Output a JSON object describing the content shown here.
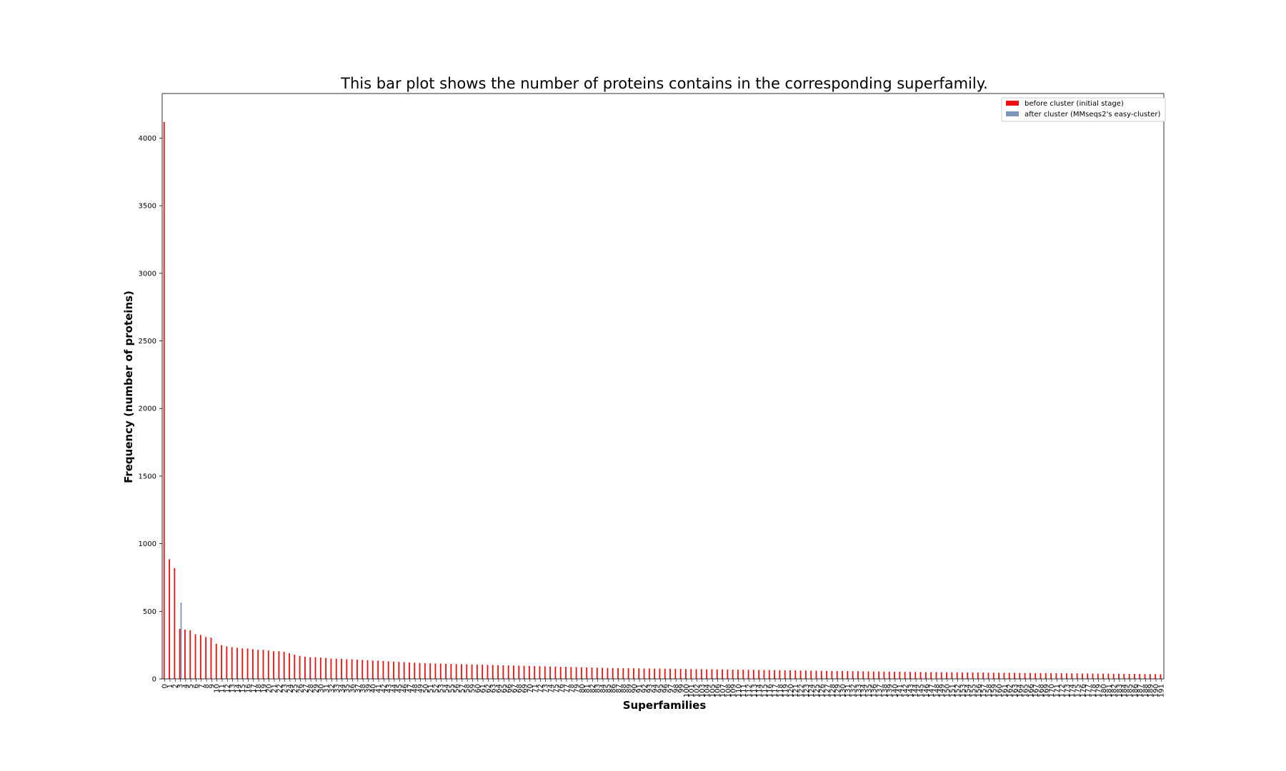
{
  "chart_data": {
    "type": "bar",
    "title": "This bar plot shows the number of proteins contains in the corresponding superfamily.",
    "xlabel": "Superfamilies",
    "ylabel": "Frequency (number of proteins)",
    "ylim": [
      0,
      4330
    ],
    "yticks": [
      0,
      500,
      1000,
      1500,
      2000,
      2500,
      3000,
      3500,
      4000
    ],
    "grid": false,
    "legend_position": "top-right",
    "categories_start": 0,
    "categories_end": 191,
    "category_labels_visible": [
      0,
      1,
      2,
      3,
      4,
      5,
      6,
      7,
      8,
      9,
      10,
      11,
      12,
      13,
      14,
      15,
      16,
      17,
      18,
      19,
      20,
      21,
      22,
      23,
      24,
      25,
      26,
      27,
      28,
      29,
      30,
      31,
      32,
      33,
      34,
      35,
      36,
      37,
      38,
      39,
      40,
      41,
      42,
      43,
      44,
      45,
      46,
      47,
      48,
      49,
      50,
      51,
      52,
      53,
      54,
      55,
      56,
      57,
      58,
      59,
      60,
      61,
      62,
      63,
      64,
      65,
      66,
      67,
      68,
      69,
      70,
      71,
      72,
      73,
      74,
      75,
      76,
      77,
      78,
      79,
      80,
      81,
      82,
      83,
      84,
      85,
      86,
      87,
      88,
      89,
      90,
      91,
      92,
      93,
      94,
      95,
      96,
      97,
      98,
      99,
      100,
      101,
      102,
      103,
      104,
      105,
      106,
      107,
      108,
      109,
      110,
      111,
      112,
      113,
      114,
      115,
      116,
      117,
      118,
      119,
      120,
      121,
      122,
      123,
      124,
      125,
      126,
      127,
      128,
      129,
      130,
      131,
      132,
      133,
      134,
      135,
      136,
      137,
      138,
      139,
      140,
      141,
      142,
      143,
      144,
      145,
      146,
      147,
      148,
      149,
      150,
      151,
      152,
      153,
      154,
      155,
      156,
      157,
      158,
      159,
      160,
      161,
      162,
      163,
      164,
      165,
      166,
      167,
      168,
      169,
      170,
      171,
      172,
      173,
      174,
      175,
      176,
      177,
      178,
      179,
      180,
      181,
      182,
      183,
      184,
      185,
      186,
      187,
      188,
      189,
      190,
      191
    ],
    "series": [
      {
        "name": "before cluster (initial stage)",
        "color": "#ee1111",
        "values": [
          4120,
          885,
          820,
          370,
          365,
          360,
          330,
          325,
          310,
          305,
          260,
          250,
          240,
          235,
          230,
          225,
          225,
          220,
          215,
          215,
          210,
          205,
          205,
          200,
          190,
          180,
          170,
          165,
          160,
          160,
          158,
          155,
          150,
          150,
          148,
          146,
          145,
          143,
          140,
          138,
          136,
          135,
          133,
          130,
          128,
          126,
          124,
          122,
          120,
          118,
          116,
          115,
          114,
          113,
          112,
          111,
          110,
          109,
          108,
          107,
          106,
          105,
          104,
          103,
          102,
          101,
          100,
          99,
          98,
          97,
          96,
          95,
          94,
          93,
          92,
          91,
          90,
          89,
          88,
          87,
          86,
          85,
          84,
          83,
          82,
          81,
          80,
          80,
          79,
          79,
          78,
          78,
          77,
          77,
          76,
          76,
          75,
          75,
          74,
          74,
          73,
          73,
          72,
          72,
          71,
          71,
          70,
          70,
          69,
          69,
          68,
          68,
          67,
          67,
          66,
          66,
          65,
          65,
          64,
          64,
          63,
          63,
          62,
          62,
          61,
          61,
          60,
          60,
          59,
          59,
          58,
          58,
          57,
          57,
          56,
          56,
          55,
          55,
          54,
          54,
          53,
          53,
          52,
          52,
          51,
          51,
          50,
          50,
          50,
          49,
          49,
          49,
          48,
          48,
          48,
          47,
          47,
          47,
          46,
          46,
          46,
          45,
          45,
          45,
          44,
          44,
          44,
          43,
          43,
          43,
          42,
          42,
          42,
          41,
          41,
          41,
          40,
          40,
          40,
          39,
          39,
          39,
          38,
          38,
          38,
          37,
          37,
          37,
          36,
          36,
          36,
          35
        ]
      },
      {
        "name": "after cluster (MMseqs2's easy-cluster)",
        "color": "#7b96b8",
        "values": [
          0,
          0,
          0,
          565,
          0,
          0,
          0,
          0,
          0,
          0,
          0,
          0,
          0,
          0,
          0,
          0,
          0,
          0,
          0,
          0,
          0,
          0,
          0,
          0,
          0,
          0,
          0,
          0,
          0,
          0,
          0,
          0,
          0,
          0,
          0,
          0,
          0,
          0,
          0,
          0,
          0,
          0,
          0,
          0,
          0,
          0,
          0,
          0,
          0,
          0,
          0,
          0,
          0,
          0,
          0,
          0,
          0,
          0,
          0,
          0,
          0,
          0,
          0,
          0,
          0,
          0,
          0,
          0,
          0,
          0,
          0,
          0,
          0,
          0,
          0,
          0,
          0,
          0,
          0,
          0,
          0,
          0,
          0,
          0,
          0,
          0,
          0,
          0,
          0,
          0,
          0,
          0,
          0,
          0,
          0,
          0,
          0,
          0,
          0,
          0,
          0,
          0,
          0,
          0,
          0,
          0,
          0,
          0,
          0,
          0,
          0,
          0,
          0,
          0,
          0,
          0,
          0,
          0,
          0,
          0,
          0,
          0,
          0,
          0,
          0,
          0,
          0,
          0,
          0,
          0,
          0,
          0,
          0,
          0,
          0,
          0,
          0,
          0,
          0,
          0,
          0,
          0,
          0,
          0,
          0,
          0,
          0,
          0,
          0,
          0,
          0,
          0,
          0,
          0,
          0,
          0,
          0,
          0,
          0,
          0,
          0,
          0,
          0,
          0,
          0,
          0,
          0,
          0,
          0,
          0,
          0,
          0,
          0,
          0,
          0,
          0,
          0,
          0,
          0,
          0,
          0,
          0,
          0,
          0,
          0,
          0,
          0,
          0,
          0,
          0,
          0,
          0
        ]
      }
    ]
  }
}
